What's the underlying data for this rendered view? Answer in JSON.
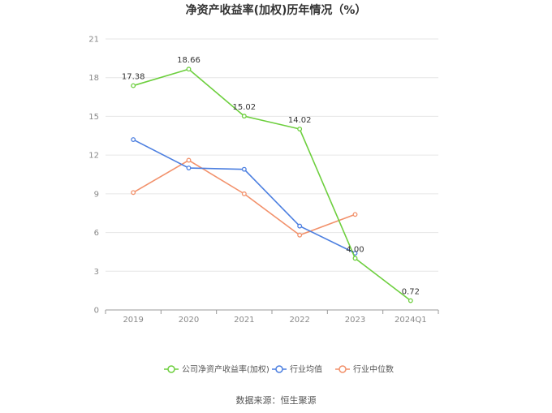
{
  "source_text": "数据来源：恒生聚源",
  "colors": {
    "series0": "#6dcf3e",
    "series1": "#4c7fe0",
    "series2": "#f2916b",
    "grid": "#e6e6e6",
    "axis": "#999999"
  },
  "chart_data": {
    "type": "line",
    "title": "净资产收益率(加权)历年情况（%）",
    "xlabel": "",
    "ylabel": "",
    "categories": [
      "2019",
      "2020",
      "2021",
      "2022",
      "2023",
      "2024Q1"
    ],
    "ylim": [
      0,
      21
    ],
    "yticks": [
      0,
      3,
      6,
      9,
      12,
      15,
      18,
      21
    ],
    "grid": true,
    "legend": "bottom",
    "series": [
      {
        "name": "公司净资产收益率(加权)",
        "values": [
          17.38,
          18.66,
          15.02,
          14.02,
          4.0,
          0.72
        ],
        "labels": [
          "17.38",
          "18.66",
          "15.02",
          "14.02",
          "4.00",
          "0.72"
        ]
      },
      {
        "name": "行业均值",
        "values": [
          13.2,
          11.0,
          10.9,
          6.5,
          4.4,
          null
        ]
      },
      {
        "name": "行业中位数",
        "values": [
          9.1,
          11.6,
          9.0,
          5.8,
          7.4,
          null
        ]
      }
    ]
  }
}
